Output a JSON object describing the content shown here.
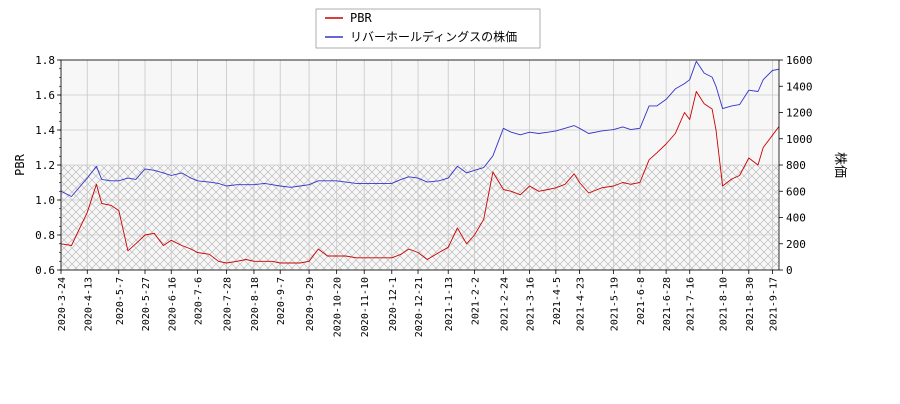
{
  "chart_data": {
    "type": "line",
    "xlabel": "",
    "ylabel_left": "PBR",
    "ylabel_right": "株価",
    "y_left_ticks": [
      "0.6",
      "0.8",
      "1.0",
      "1.2",
      "1.4",
      "1.6",
      "1.8"
    ],
    "y_right_ticks": [
      "0",
      "200",
      "400",
      "600",
      "800",
      "1000",
      "1200",
      "1400",
      "1600"
    ],
    "ylim_left": [
      0.6,
      1.8
    ],
    "ylim_right": [
      0,
      1600
    ],
    "x_ticks": [
      "2020-3-24",
      "2020-4-13",
      "2020-5-7",
      "2020-5-27",
      "2020-6-16",
      "2020-7-6",
      "2020-7-28",
      "2020-8-18",
      "2020-9-7",
      "2020-9-29",
      "2020-10-20",
      "2020-11-10",
      "2020-12-1",
      "2020-12-21",
      "2021-1-13",
      "2021-2-2",
      "2021-2-24",
      "2021-3-16",
      "2021-4-5",
      "2021-4-23",
      "2021-5-19",
      "2021-6-8",
      "2021-6-28",
      "2021-7-16",
      "2021-8-10",
      "2021-8-30",
      "2021-9-17"
    ],
    "grid": true,
    "shaded_band_left": [
      0.6,
      1.2
    ],
    "legend_position": "top-center",
    "series": [
      {
        "name": "PBR",
        "axis": "left",
        "color": "#cc0000",
        "x": [
          "2020-3-24",
          "2020-4-1",
          "2020-4-13",
          "2020-4-20",
          "2020-4-24",
          "2020-5-1",
          "2020-5-7",
          "2020-5-14",
          "2020-5-20",
          "2020-5-27",
          "2020-6-3",
          "2020-6-10",
          "2020-6-16",
          "2020-6-24",
          "2020-7-1",
          "2020-7-6",
          "2020-7-15",
          "2020-7-22",
          "2020-7-28",
          "2020-8-5",
          "2020-8-12",
          "2020-8-18",
          "2020-8-26",
          "2020-9-1",
          "2020-9-7",
          "2020-9-15",
          "2020-9-22",
          "2020-9-29",
          "2020-10-6",
          "2020-10-13",
          "2020-10-20",
          "2020-10-27",
          "2020-11-4",
          "2020-11-10",
          "2020-11-17",
          "2020-11-24",
          "2020-12-1",
          "2020-12-8",
          "2020-12-14",
          "2020-12-21",
          "2020-12-28",
          "2021-1-6",
          "2021-1-13",
          "2021-1-20",
          "2021-1-27",
          "2021-2-2",
          "2021-2-9",
          "2021-2-16",
          "2021-2-24",
          "2021-3-2",
          "2021-3-9",
          "2021-3-16",
          "2021-3-23",
          "2021-3-30",
          "2021-4-5",
          "2021-4-12",
          "2021-4-19",
          "2021-4-23",
          "2021-4-30",
          "2021-5-10",
          "2021-5-19",
          "2021-5-26",
          "2021-6-1",
          "2021-6-8",
          "2021-6-15",
          "2021-6-21",
          "2021-6-28",
          "2021-7-5",
          "2021-7-12",
          "2021-7-16",
          "2021-7-21",
          "2021-7-27",
          "2021-8-2",
          "2021-8-5",
          "2021-8-10",
          "2021-8-17",
          "2021-8-23",
          "2021-8-30",
          "2021-9-6",
          "2021-9-10",
          "2021-9-17",
          "2021-9-22"
        ],
        "values": [
          0.75,
          0.74,
          0.93,
          1.09,
          0.98,
          0.97,
          0.94,
          0.71,
          0.75,
          0.8,
          0.81,
          0.74,
          0.77,
          0.74,
          0.72,
          0.7,
          0.69,
          0.65,
          0.64,
          0.65,
          0.66,
          0.65,
          0.65,
          0.65,
          0.64,
          0.64,
          0.64,
          0.65,
          0.72,
          0.68,
          0.68,
          0.68,
          0.67,
          0.67,
          0.67,
          0.67,
          0.67,
          0.69,
          0.72,
          0.7,
          0.66,
          0.7,
          0.73,
          0.84,
          0.75,
          0.8,
          0.89,
          1.16,
          1.06,
          1.05,
          1.03,
          1.08,
          1.05,
          1.06,
          1.07,
          1.09,
          1.15,
          1.1,
          1.04,
          1.07,
          1.08,
          1.1,
          1.09,
          1.1,
          1.23,
          1.27,
          1.32,
          1.38,
          1.5,
          1.46,
          1.62,
          1.55,
          1.52,
          1.4,
          1.08,
          1.12,
          1.14,
          1.24,
          1.2,
          1.3,
          1.37,
          1.42
        ]
      },
      {
        "name": "リバーホールディングスの株価",
        "axis": "right",
        "color": "#3333cc",
        "x": [
          "2020-3-24",
          "2020-4-1",
          "2020-4-13",
          "2020-4-20",
          "2020-4-24",
          "2020-5-1",
          "2020-5-7",
          "2020-5-14",
          "2020-5-20",
          "2020-5-27",
          "2020-6-3",
          "2020-6-10",
          "2020-6-16",
          "2020-6-24",
          "2020-7-1",
          "2020-7-6",
          "2020-7-15",
          "2020-7-22",
          "2020-7-28",
          "2020-8-5",
          "2020-8-12",
          "2020-8-18",
          "2020-8-26",
          "2020-9-1",
          "2020-9-7",
          "2020-9-15",
          "2020-9-22",
          "2020-9-29",
          "2020-10-6",
          "2020-10-13",
          "2020-10-20",
          "2020-10-27",
          "2020-11-4",
          "2020-11-10",
          "2020-11-17",
          "2020-11-24",
          "2020-12-1",
          "2020-12-8",
          "2020-12-14",
          "2020-12-21",
          "2020-12-28",
          "2021-1-6",
          "2021-1-13",
          "2021-1-20",
          "2021-1-27",
          "2021-2-2",
          "2021-2-9",
          "2021-2-16",
          "2021-2-24",
          "2021-3-2",
          "2021-3-9",
          "2021-3-16",
          "2021-3-23",
          "2021-3-30",
          "2021-4-5",
          "2021-4-12",
          "2021-4-19",
          "2021-4-23",
          "2021-4-30",
          "2021-5-10",
          "2021-5-19",
          "2021-5-26",
          "2021-6-1",
          "2021-6-8",
          "2021-6-15",
          "2021-6-21",
          "2021-6-28",
          "2021-7-5",
          "2021-7-12",
          "2021-7-16",
          "2021-7-21",
          "2021-7-27",
          "2021-8-2",
          "2021-8-5",
          "2021-8-10",
          "2021-8-17",
          "2021-8-23",
          "2021-8-30",
          "2021-9-6",
          "2021-9-10",
          "2021-9-17",
          "2021-9-22"
        ],
        "values": [
          600,
          560,
          700,
          790,
          690,
          680,
          680,
          700,
          690,
          770,
          760,
          740,
          720,
          740,
          700,
          680,
          670,
          660,
          640,
          650,
          650,
          650,
          660,
          650,
          640,
          630,
          640,
          650,
          680,
          680,
          680,
          670,
          660,
          660,
          660,
          660,
          660,
          690,
          710,
          700,
          670,
          680,
          700,
          790,
          740,
          760,
          780,
          870,
          1080,
          1050,
          1030,
          1050,
          1040,
          1050,
          1060,
          1080,
          1100,
          1080,
          1040,
          1060,
          1070,
          1090,
          1070,
          1080,
          1250,
          1250,
          1300,
          1380,
          1420,
          1450,
          1590,
          1500,
          1470,
          1400,
          1230,
          1250,
          1260,
          1370,
          1360,
          1450,
          1520,
          1530
        ]
      }
    ]
  }
}
